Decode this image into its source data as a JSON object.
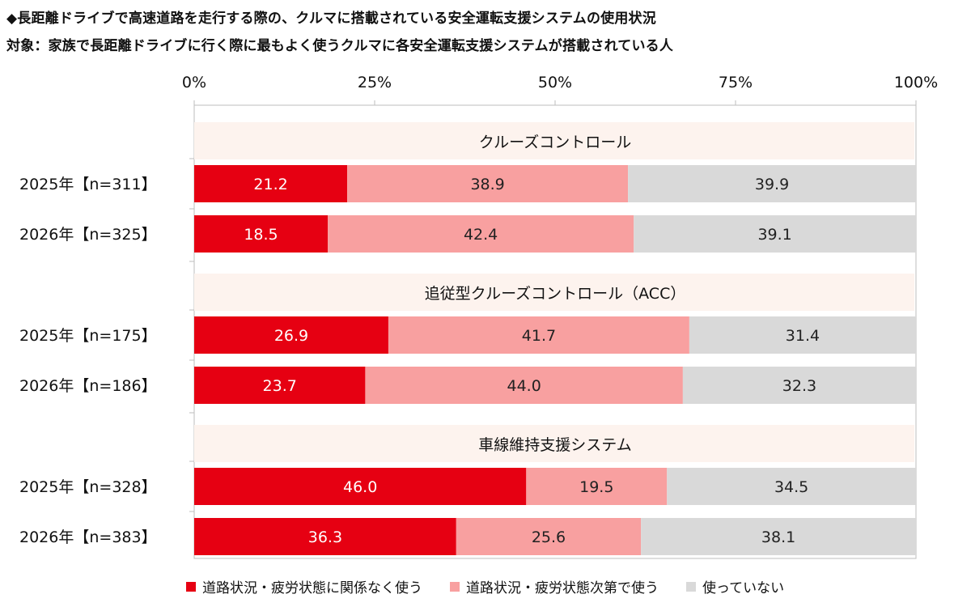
{
  "title": "◆長距離ドライブで高速道路を走行する際の、クルマに搭載されている安全運転支援システムの使用状況",
  "subtitle": "対象：家族で長距離ドライブに行く際に最もよく使うクルマに各安全運転支援システムが搭載されている人",
  "colors": {
    "series": [
      "#e60012",
      "#f8a0a0",
      "#d9d9d9"
    ],
    "group_band": "#fdf3ee",
    "label_dark": "#222222",
    "label_light": "#ffffff"
  },
  "chart_data": {
    "type": "bar",
    "orientation": "horizontal",
    "stacked": true,
    "axis": {
      "ticks": [
        "0%",
        "25%",
        "50%",
        "75%",
        "100%"
      ],
      "xlim": [
        0,
        100
      ],
      "position": "top",
      "grid": true
    },
    "legend": {
      "position": "bottom",
      "items": [
        "道路状況・疲労状態に関係なく使う",
        "道路状況・疲労状態次第で使う",
        "使っていない"
      ]
    },
    "groups": [
      {
        "name": "クルーズコントロール",
        "rows": [
          {
            "label": "2025年【n=311】",
            "values": [
              21.2,
              38.9,
              39.9
            ]
          },
          {
            "label": "2026年【n=325】",
            "values": [
              18.5,
              42.4,
              39.1
            ]
          }
        ]
      },
      {
        "name": "追従型クルーズコントロール（ACC）",
        "rows": [
          {
            "label": "2025年【n=175】",
            "values": [
              26.9,
              41.7,
              31.4
            ]
          },
          {
            "label": "2026年【n=186】",
            "values": [
              23.7,
              44.0,
              32.3
            ]
          }
        ]
      },
      {
        "name": "車線維持支援システム",
        "rows": [
          {
            "label": "2025年【n=328】",
            "values": [
              46.0,
              19.5,
              34.5
            ]
          },
          {
            "label": "2026年【n=383】",
            "values": [
              36.3,
              25.6,
              38.1
            ]
          }
        ]
      }
    ]
  }
}
